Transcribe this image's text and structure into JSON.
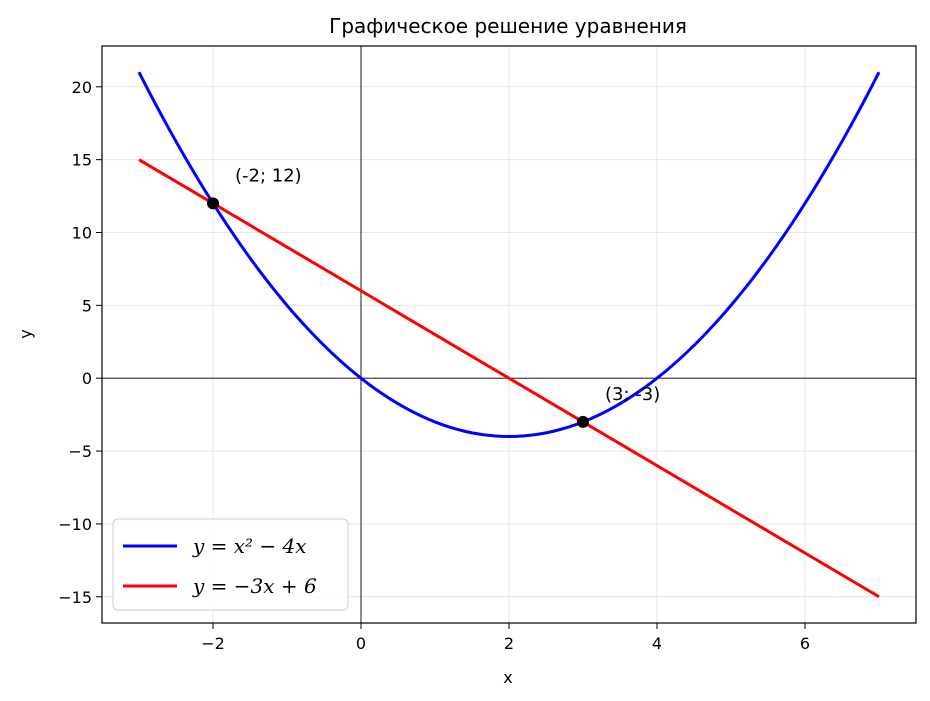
{
  "chart_data": {
    "type": "line",
    "title": "Графическое решение уравнения",
    "xlabel": "x",
    "ylabel": "y",
    "xlim": [
      -3.5,
      7.5
    ],
    "ylim": [
      -16.8,
      22.8
    ],
    "xticks": [
      -2,
      0,
      2,
      4,
      6
    ],
    "xtick_labels": [
      "−2",
      "0",
      "2",
      "4",
      "6"
    ],
    "yticks": [
      20,
      15,
      10,
      5,
      0,
      -5,
      -10,
      -15
    ],
    "ytick_labels": [
      "20",
      "15",
      "10",
      "5",
      "0",
      "−5",
      "−10",
      "−15"
    ],
    "grid": true,
    "legend_position": "lower-left",
    "series": [
      {
        "name": "y = x² − 4x",
        "color": "#0000ff",
        "x": [
          -3,
          -2,
          -1,
          0,
          1,
          2,
          3,
          4,
          5,
          6,
          7
        ],
        "y": [
          21,
          12,
          5,
          0,
          -3,
          -4,
          -3,
          0,
          5,
          12,
          21
        ]
      },
      {
        "name": "y = −3x + 6",
        "color": "#ff0000",
        "x": [
          -3,
          7
        ],
        "y": [
          15,
          -15
        ]
      }
    ],
    "points": [
      {
        "x": -2,
        "y": 12,
        "label": "(-2; 12)"
      },
      {
        "x": 3,
        "y": -3,
        "label": "(3; -3)"
      }
    ]
  }
}
